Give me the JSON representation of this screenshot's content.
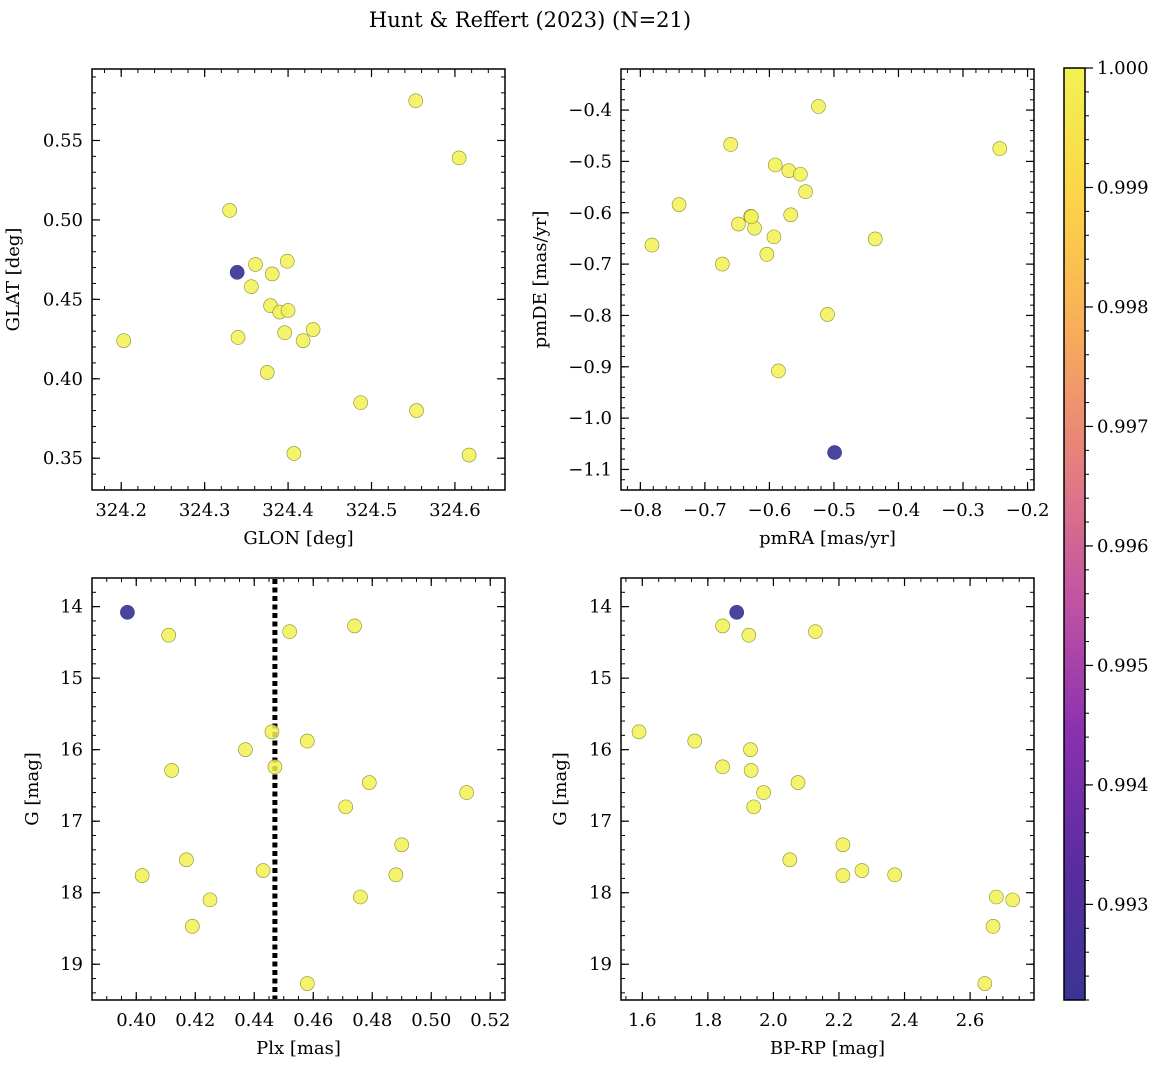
{
  "figure": {
    "title": "Hunt & Reffert (2023) (N=21)"
  },
  "colorbar": {
    "range": [
      0.9922,
      1.0
    ],
    "ticks": [
      0.993,
      0.994,
      0.995,
      0.996,
      0.997,
      0.998,
      0.999,
      1.0
    ],
    "tick_labels": [
      "0.993",
      "0.994",
      "0.995",
      "0.996",
      "0.997",
      "0.998",
      "0.999",
      "1.000"
    ],
    "colormap": "plasma",
    "colormap_stops": [
      "#393594",
      "#5a2ca0",
      "#8a30b0",
      "#c153a2",
      "#e57d80",
      "#f8ac5a",
      "#fcd348",
      "#f2f252"
    ]
  },
  "colors": {
    "member": "#f2f252",
    "outlier": "#393594",
    "member_edge": "#8a8a36",
    "refline": "#000000"
  },
  "chart_data": [
    {
      "type": "scatter",
      "name": "sky",
      "xlabel": "GLON [deg]",
      "ylabel": "GLAT [deg]",
      "xlim": [
        324.165,
        324.66
      ],
      "ylim": [
        0.33,
        0.595
      ],
      "yinvert": false,
      "xticks": [
        324.2,
        324.3,
        324.4,
        324.5,
        324.6
      ],
      "xtick_labels": [
        "324.2",
        "324.3",
        "324.4",
        "324.5",
        "324.6"
      ],
      "xminor": 0.02,
      "yticks": [
        0.35,
        0.4,
        0.45,
        0.5,
        0.55
      ],
      "ytick_labels": [
        "0.35",
        "0.40",
        "0.45",
        "0.50",
        "0.55"
      ],
      "yminor": 0.01,
      "points": [
        {
          "x": 324.203,
          "y": 0.424,
          "prob": 1.0
        },
        {
          "x": 324.33,
          "y": 0.506,
          "prob": 1.0
        },
        {
          "x": 324.34,
          "y": 0.426,
          "prob": 1.0
        },
        {
          "x": 324.356,
          "y": 0.458,
          "prob": 1.0
        },
        {
          "x": 324.361,
          "y": 0.472,
          "prob": 1.0
        },
        {
          "x": 324.375,
          "y": 0.404,
          "prob": 1.0
        },
        {
          "x": 324.379,
          "y": 0.446,
          "prob": 1.0
        },
        {
          "x": 324.381,
          "y": 0.466,
          "prob": 1.0
        },
        {
          "x": 324.39,
          "y": 0.442,
          "prob": 1.0
        },
        {
          "x": 324.396,
          "y": 0.429,
          "prob": 1.0
        },
        {
          "x": 324.399,
          "y": 0.474,
          "prob": 1.0
        },
        {
          "x": 324.4,
          "y": 0.443,
          "prob": 1.0
        },
        {
          "x": 324.407,
          "y": 0.353,
          "prob": 1.0
        },
        {
          "x": 324.418,
          "y": 0.424,
          "prob": 1.0
        },
        {
          "x": 324.43,
          "y": 0.431,
          "prob": 1.0
        },
        {
          "x": 324.487,
          "y": 0.385,
          "prob": 1.0
        },
        {
          "x": 324.553,
          "y": 0.575,
          "prob": 1.0
        },
        {
          "x": 324.554,
          "y": 0.38,
          "prob": 1.0
        },
        {
          "x": 324.605,
          "y": 0.539,
          "prob": 1.0
        },
        {
          "x": 324.617,
          "y": 0.352,
          "prob": 1.0
        },
        {
          "x": 324.339,
          "y": 0.467,
          "prob": 0.9922
        }
      ]
    },
    {
      "type": "scatter",
      "name": "proper-motion",
      "xlabel": "pmRA [mas/yr]",
      "ylabel": "pmDE [mas/yr]",
      "xlim": [
        -0.83,
        -0.19
      ],
      "ylim": [
        -1.14,
        -0.32
      ],
      "yinvert": false,
      "xticks": [
        -0.8,
        -0.7,
        -0.6,
        -0.5,
        -0.4,
        -0.3,
        -0.2
      ],
      "xtick_labels": [
        "−0.8",
        "−0.7",
        "−0.6",
        "−0.5",
        "−0.4",
        "−0.3",
        "−0.2"
      ],
      "xminor": 0.02,
      "yticks": [
        -1.1,
        -1.0,
        -0.9,
        -0.8,
        -0.7,
        -0.6,
        -0.5,
        -0.4
      ],
      "ytick_labels": [
        "−1.1",
        "−1.0",
        "−0.9",
        "−0.8",
        "−0.7",
        "−0.6",
        "−0.5",
        "−0.4"
      ],
      "yminor": 0.02,
      "points": [
        {
          "x": -0.782,
          "y": -0.663,
          "prob": 1.0
        },
        {
          "x": -0.74,
          "y": -0.584,
          "prob": 1.0
        },
        {
          "x": -0.673,
          "y": -0.7,
          "prob": 1.0
        },
        {
          "x": -0.66,
          "y": -0.467,
          "prob": 1.0
        },
        {
          "x": -0.648,
          "y": -0.622,
          "prob": 1.0
        },
        {
          "x": -0.629,
          "y": -0.607,
          "prob": 1.0
        },
        {
          "x": -0.623,
          "y": -0.63,
          "prob": 1.0
        },
        {
          "x": -0.604,
          "y": -0.681,
          "prob": 1.0
        },
        {
          "x": -0.593,
          "y": -0.647,
          "prob": 1.0
        },
        {
          "x": -0.591,
          "y": -0.507,
          "prob": 1.0
        },
        {
          "x": -0.586,
          "y": -0.908,
          "prob": 1.0
        },
        {
          "x": -0.57,
          "y": -0.518,
          "prob": 1.0
        },
        {
          "x": -0.567,
          "y": -0.604,
          "prob": 1.0
        },
        {
          "x": -0.552,
          "y": -0.525,
          "prob": 1.0
        },
        {
          "x": -0.544,
          "y": -0.559,
          "prob": 1.0
        },
        {
          "x": -0.524,
          "y": -0.393,
          "prob": 1.0
        },
        {
          "x": -0.51,
          "y": -0.798,
          "prob": 1.0
        },
        {
          "x": -0.436,
          "y": -0.651,
          "prob": 1.0
        },
        {
          "x": -0.243,
          "y": -0.475,
          "prob": 1.0
        },
        {
          "x": -0.628,
          "y": -0.608,
          "prob": 1.0
        },
        {
          "x": -0.499,
          "y": -1.067,
          "prob": 0.9922
        }
      ]
    },
    {
      "type": "scatter",
      "name": "parallax-magnitude",
      "xlabel": "Plx [mas]",
      "ylabel": "G [mag]",
      "xlim": [
        0.385,
        0.525
      ],
      "ylim": [
        13.6,
        19.5
      ],
      "yinvert": true,
      "vline": 0.447,
      "xticks": [
        0.4,
        0.42,
        0.44,
        0.46,
        0.48,
        0.5,
        0.52
      ],
      "xtick_labels": [
        "0.40",
        "0.42",
        "0.44",
        "0.46",
        "0.48",
        "0.50",
        "0.52"
      ],
      "xminor": 0.005,
      "yticks": [
        14,
        15,
        16,
        17,
        18,
        19
      ],
      "ytick_labels": [
        "14",
        "15",
        "16",
        "17",
        "18",
        "19"
      ],
      "yminor": 0.2,
      "points": [
        {
          "x": 0.402,
          "y": 17.76,
          "prob": 1.0
        },
        {
          "x": 0.411,
          "y": 14.4,
          "prob": 1.0
        },
        {
          "x": 0.412,
          "y": 16.29,
          "prob": 1.0
        },
        {
          "x": 0.417,
          "y": 17.54,
          "prob": 1.0
        },
        {
          "x": 0.419,
          "y": 18.47,
          "prob": 1.0
        },
        {
          "x": 0.425,
          "y": 18.1,
          "prob": 1.0
        },
        {
          "x": 0.437,
          "y": 16.0,
          "prob": 1.0
        },
        {
          "x": 0.443,
          "y": 17.69,
          "prob": 1.0
        },
        {
          "x": 0.446,
          "y": 15.75,
          "prob": 1.0
        },
        {
          "x": 0.447,
          "y": 16.24,
          "prob": 1.0
        },
        {
          "x": 0.452,
          "y": 14.35,
          "prob": 1.0
        },
        {
          "x": 0.458,
          "y": 15.88,
          "prob": 1.0
        },
        {
          "x": 0.458,
          "y": 19.27,
          "prob": 1.0
        },
        {
          "x": 0.471,
          "y": 16.8,
          "prob": 1.0
        },
        {
          "x": 0.474,
          "y": 14.27,
          "prob": 1.0
        },
        {
          "x": 0.476,
          "y": 18.06,
          "prob": 1.0
        },
        {
          "x": 0.479,
          "y": 16.46,
          "prob": 1.0
        },
        {
          "x": 0.488,
          "y": 17.75,
          "prob": 1.0
        },
        {
          "x": 0.49,
          "y": 17.33,
          "prob": 1.0
        },
        {
          "x": 0.512,
          "y": 16.6,
          "prob": 1.0
        },
        {
          "x": 0.397,
          "y": 14.08,
          "prob": 0.9922
        }
      ]
    },
    {
      "type": "scatter",
      "name": "color-magnitude",
      "xlabel": "BP-RP [mag]",
      "ylabel": "G [mag]",
      "xlim": [
        1.535,
        2.795
      ],
      "ylim": [
        13.6,
        19.5
      ],
      "yinvert": true,
      "xticks": [
        1.6,
        1.8,
        2.0,
        2.2,
        2.4,
        2.6
      ],
      "xtick_labels": [
        "1.6",
        "1.8",
        "2.0",
        "2.2",
        "2.4",
        "2.6"
      ],
      "xminor": 0.05,
      "yticks": [
        14,
        15,
        16,
        17,
        18,
        19
      ],
      "ytick_labels": [
        "14",
        "15",
        "16",
        "17",
        "18",
        "19"
      ],
      "yminor": 0.2,
      "points": [
        {
          "x": 1.59,
          "y": 15.75,
          "prob": 1.0
        },
        {
          "x": 1.76,
          "y": 15.88,
          "prob": 1.0
        },
        {
          "x": 1.845,
          "y": 14.27,
          "prob": 1.0
        },
        {
          "x": 1.845,
          "y": 16.24,
          "prob": 1.0
        },
        {
          "x": 1.925,
          "y": 14.4,
          "prob": 1.0
        },
        {
          "x": 1.93,
          "y": 16.0,
          "prob": 1.0
        },
        {
          "x": 1.932,
          "y": 16.29,
          "prob": 1.0
        },
        {
          "x": 1.94,
          "y": 16.8,
          "prob": 1.0
        },
        {
          "x": 1.97,
          "y": 16.6,
          "prob": 1.0
        },
        {
          "x": 2.05,
          "y": 17.54,
          "prob": 1.0
        },
        {
          "x": 2.075,
          "y": 16.46,
          "prob": 1.0
        },
        {
          "x": 2.128,
          "y": 14.35,
          "prob": 1.0
        },
        {
          "x": 2.212,
          "y": 17.33,
          "prob": 1.0
        },
        {
          "x": 2.212,
          "y": 17.76,
          "prob": 1.0
        },
        {
          "x": 2.27,
          "y": 17.69,
          "prob": 1.0
        },
        {
          "x": 2.37,
          "y": 17.75,
          "prob": 1.0
        },
        {
          "x": 2.645,
          "y": 19.27,
          "prob": 1.0
        },
        {
          "x": 2.67,
          "y": 18.47,
          "prob": 1.0
        },
        {
          "x": 2.68,
          "y": 18.06,
          "prob": 1.0
        },
        {
          "x": 2.73,
          "y": 18.1,
          "prob": 1.0
        },
        {
          "x": 1.888,
          "y": 14.08,
          "prob": 0.9922
        }
      ]
    }
  ]
}
